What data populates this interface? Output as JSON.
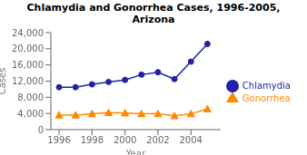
{
  "chart_data": {
    "type": "line",
    "title": "Chlamydia and Gonorrhea Cases, 1996-2005,\nArizona",
    "x_label": "Year",
    "y_label": "Cases",
    "x": [
      1996,
      1997,
      1998,
      1999,
      2000,
      2001,
      2002,
      2003,
      2004,
      2005
    ],
    "series": [
      {
        "name": "Chlamydia",
        "color": "#2222aa",
        "marker": "circle",
        "values": [
          10500,
          10500,
          11200,
          11800,
          12300,
          13600,
          14200,
          12500,
          16800,
          21200
        ]
      },
      {
        "name": "Gonorrhea",
        "color": "#ff8800",
        "marker": "triangle",
        "values": [
          3600,
          3600,
          3900,
          4200,
          4100,
          3900,
          3900,
          3400,
          3900,
          5100
        ]
      }
    ],
    "xlim": [
      1995.5,
      2005.8
    ],
    "xticks": [
      1996,
      1998,
      2000,
      2002,
      2004
    ],
    "ylim": [
      0,
      24000
    ],
    "yticks": [
      0,
      {
        "value": 4000,
        "label": "4,000"
      },
      {
        "value": 8000,
        "label": "8,000"
      },
      {
        "value": 12000,
        "label": "12,000"
      },
      {
        "value": 16000,
        "label": "16,000"
      },
      {
        "value": 20000,
        "label": "20,000"
      },
      {
        "value": 24000,
        "label": "24,000"
      }
    ],
    "grid": false,
    "legend": "right"
  }
}
